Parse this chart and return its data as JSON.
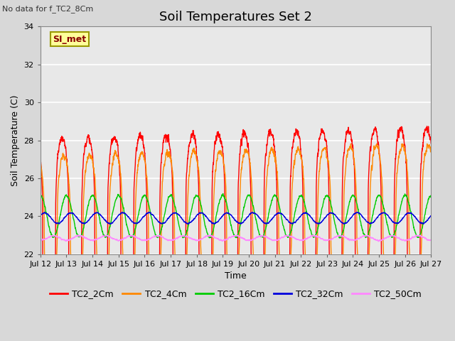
{
  "title": "Soil Temperatures Set 2",
  "subtitle": "No data for f_TC2_8Cm",
  "xlabel": "Time",
  "ylabel": "Soil Temperature (C)",
  "ylim": [
    22,
    34
  ],
  "xlim": [
    0,
    360
  ],
  "x_tick_labels": [
    "Jul 12",
    "Jul 13",
    "Jul 14",
    "Jul 15",
    "Jul 16",
    "Jul 17",
    "Jul 18",
    "Jul 19",
    "Jul 20",
    "Jul 21",
    "Jul 22",
    "Jul 23",
    "Jul 24",
    "Jul 25",
    "Jul 26",
    "Jul 27"
  ],
  "x_tick_positions": [
    0,
    24,
    48,
    72,
    96,
    120,
    144,
    168,
    192,
    216,
    240,
    264,
    288,
    312,
    336,
    360
  ],
  "y_tick_positions": [
    22,
    24,
    26,
    28,
    30,
    32,
    34
  ],
  "background_color": "#d8d8d8",
  "plot_bg_color": "#e8e8e8",
  "grid_color": "#ffffff",
  "series": [
    {
      "label": "TC2_2Cm",
      "color": "#ff0000",
      "base": 23.3,
      "amplitude": 4.8,
      "phase_hours": 14.0,
      "noise": 0.25,
      "peak_sharpness": 3.0
    },
    {
      "label": "TC2_4Cm",
      "color": "#ff8800",
      "base": 23.4,
      "amplitude": 3.8,
      "phase_hours": 15.5,
      "noise": 0.2,
      "peak_sharpness": 2.5
    },
    {
      "label": "TC2_16Cm",
      "color": "#00cc00",
      "base": 24.0,
      "amplitude": 1.1,
      "phase_hours": 18.0,
      "noise": 0.06,
      "peak_sharpness": 1.0
    },
    {
      "label": "TC2_32Cm",
      "color": "#0000dd",
      "base": 23.9,
      "amplitude": 0.28,
      "phase_hours": 22.0,
      "noise": 0.03,
      "peak_sharpness": 1.0
    },
    {
      "label": "TC2_50Cm",
      "color": "#ff88ff",
      "base": 22.85,
      "amplitude": 0.12,
      "phase_hours": 6.0,
      "noise": 0.04,
      "peak_sharpness": 1.0
    }
  ],
  "legend_box_facecolor": "#ffff99",
  "legend_box_edgecolor": "#999900",
  "legend_box_text": "SI_met",
  "title_fontsize": 13,
  "label_fontsize": 9,
  "tick_fontsize": 8,
  "linewidth": 1.0
}
